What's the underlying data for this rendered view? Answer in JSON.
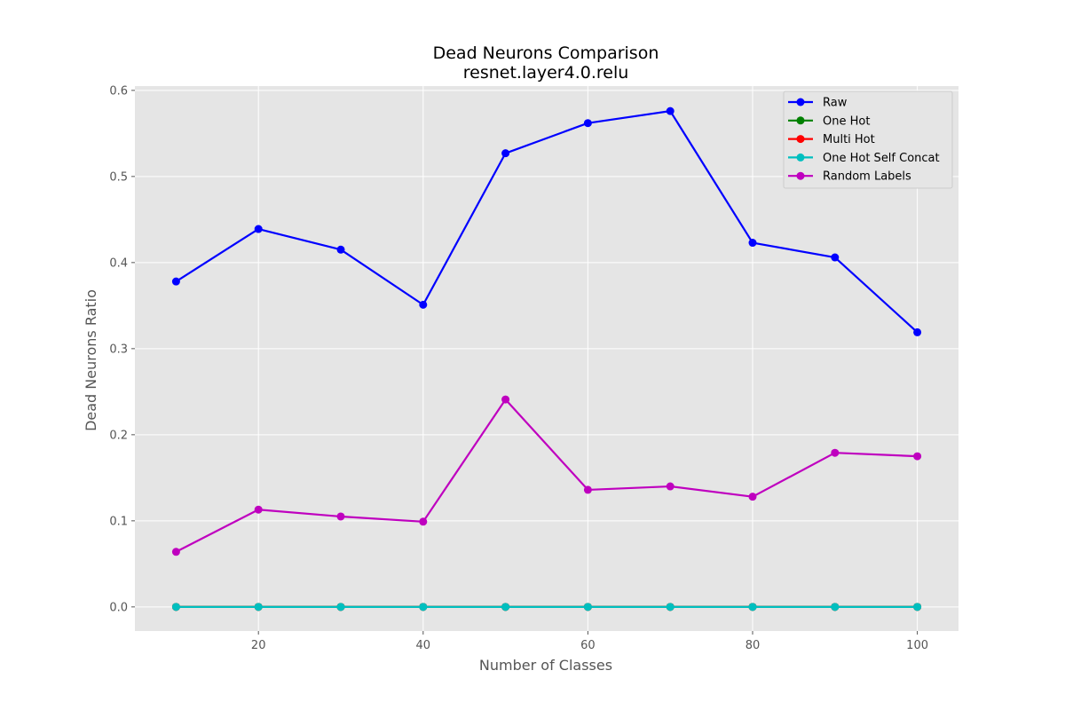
{
  "chart_data": {
    "type": "line",
    "title": "Dead Neurons Comparison",
    "subtitle": "resnet.layer4.0.relu",
    "xlabel": "Number of Classes",
    "ylabel": "Dead Neurons Ratio",
    "x": [
      10,
      20,
      30,
      40,
      50,
      60,
      70,
      80,
      90,
      100
    ],
    "xlim": [
      5,
      105
    ],
    "ylim": [
      -0.028,
      0.605
    ],
    "xticks": [
      20,
      40,
      60,
      80,
      100
    ],
    "yticks": [
      0.0,
      0.1,
      0.2,
      0.3,
      0.4,
      0.5,
      0.6
    ],
    "xtick_labels": [
      "20",
      "40",
      "60",
      "80",
      "100"
    ],
    "ytick_labels": [
      "0.0",
      "0.1",
      "0.2",
      "0.3",
      "0.4",
      "0.5",
      "0.6"
    ],
    "grid": true,
    "legend_position": "top-right",
    "series": [
      {
        "name": "Raw",
        "color": "#0000ff",
        "values": [
          0.378,
          0.439,
          0.415,
          0.351,
          0.527,
          0.562,
          0.576,
          0.423,
          0.406,
          0.319
        ]
      },
      {
        "name": "One Hot",
        "color": "#008000",
        "values": [
          0,
          0,
          0,
          0,
          0,
          0,
          0,
          0,
          0,
          0
        ]
      },
      {
        "name": "Multi Hot",
        "color": "#ff0000",
        "values": [
          0,
          0,
          0,
          0,
          0,
          0,
          0,
          0,
          0,
          0
        ]
      },
      {
        "name": "One Hot Self Concat",
        "color": "#00bfbf",
        "values": [
          0,
          0,
          0,
          0,
          0,
          0,
          0,
          0,
          0,
          0
        ]
      },
      {
        "name": "Random Labels",
        "color": "#bf00bf",
        "values": [
          0.064,
          0.113,
          0.105,
          0.099,
          0.241,
          0.136,
          0.14,
          0.128,
          0.179,
          0.175
        ]
      }
    ]
  }
}
